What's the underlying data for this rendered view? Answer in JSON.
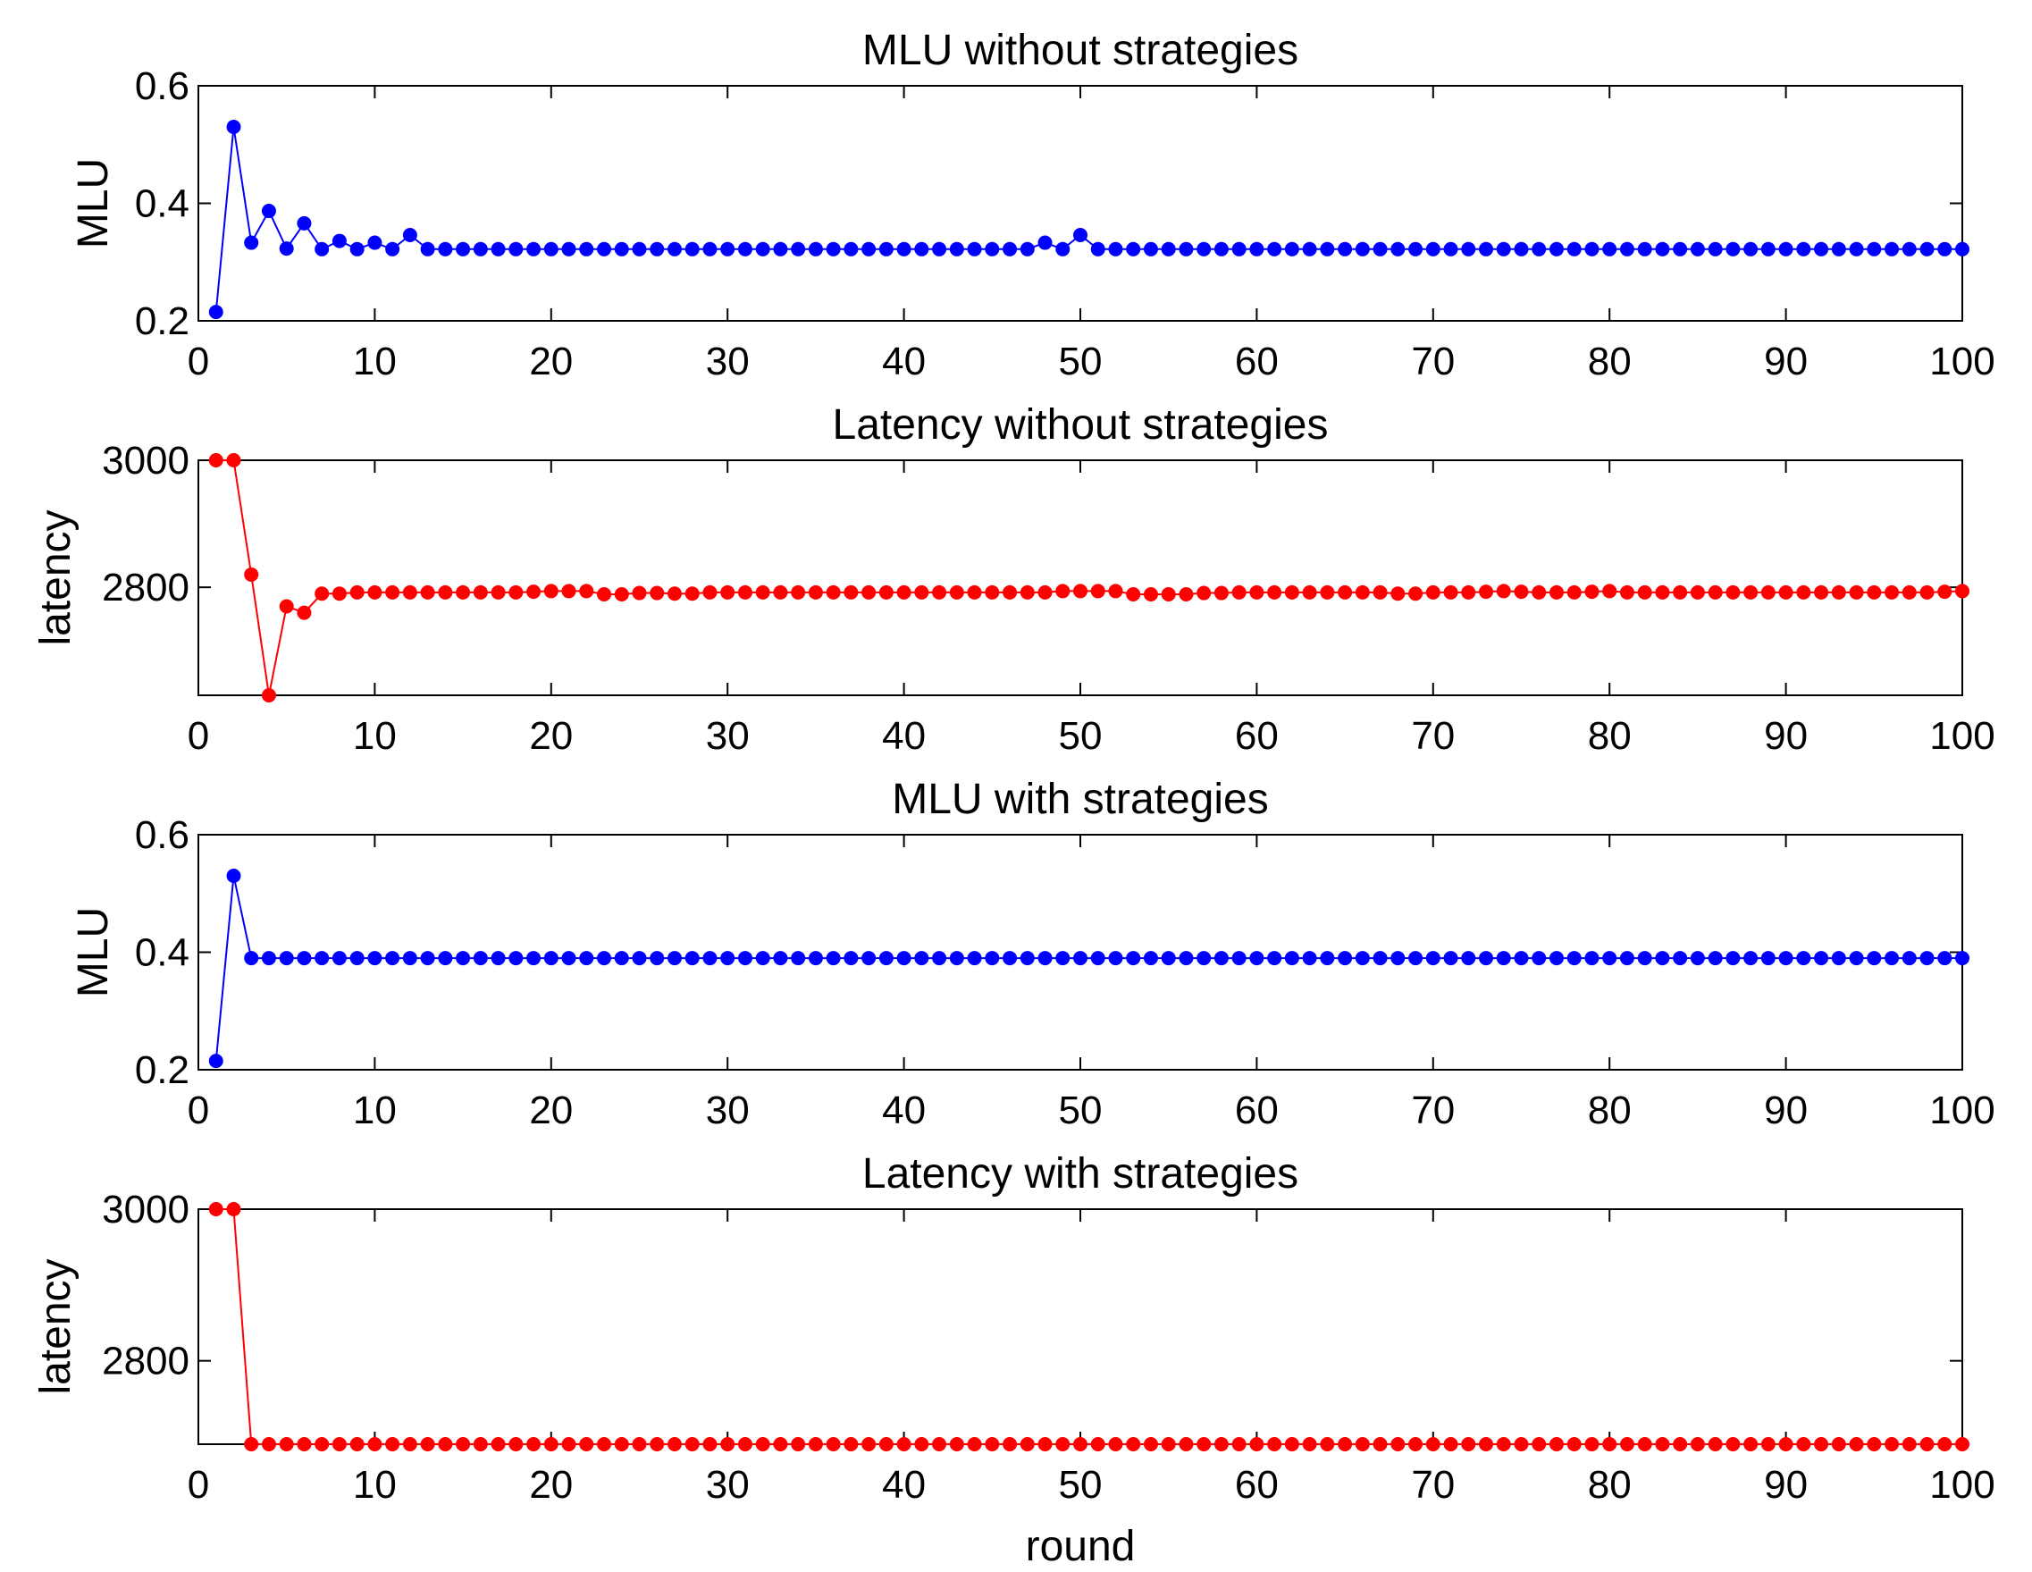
{
  "chart_data": [
    {
      "type": "line",
      "title": "MLU without strategies",
      "xlabel": "",
      "ylabel": "MLU",
      "xlim": [
        0,
        100
      ],
      "ylim": [
        0.2,
        0.6
      ],
      "xticks": [
        "0",
        "10",
        "20",
        "30",
        "40",
        "50",
        "60",
        "70",
        "80",
        "90",
        "100"
      ],
      "yticks": [
        "0.2",
        "0.4",
        "0.6"
      ],
      "color": "#0000ff",
      "grid": false,
      "series": [
        {
          "x": [
            1,
            2,
            3,
            4,
            5,
            6,
            7,
            8,
            9,
            10,
            11,
            12,
            13,
            14,
            15,
            16,
            17,
            18,
            19,
            20,
            21,
            22,
            23,
            24,
            25,
            26,
            27,
            28,
            29,
            30,
            31,
            32,
            33,
            34,
            35,
            36,
            37,
            38,
            39,
            40,
            41,
            42,
            43,
            44,
            45,
            46,
            47,
            48,
            49,
            50,
            51,
            52,
            53,
            54,
            55,
            56,
            57,
            58,
            59,
            60,
            61,
            62,
            63,
            64,
            65,
            66,
            67,
            68,
            69,
            70,
            71,
            72,
            73,
            74,
            75,
            76,
            77,
            78,
            79,
            80,
            81,
            82,
            83,
            84,
            85,
            86,
            87,
            88,
            89,
            90,
            91,
            92,
            93,
            94,
            95,
            96,
            97,
            98,
            99,
            100
          ],
          "values": [
            0.215,
            0.53,
            0.333,
            0.387,
            0.323,
            0.366,
            0.322,
            0.336,
            0.322,
            0.333,
            0.322,
            0.346,
            0.322,
            0.322,
            0.322,
            0.322,
            0.322,
            0.322,
            0.322,
            0.322,
            0.322,
            0.322,
            0.322,
            0.322,
            0.322,
            0.322,
            0.322,
            0.322,
            0.322,
            0.322,
            0.322,
            0.322,
            0.322,
            0.322,
            0.322,
            0.322,
            0.322,
            0.322,
            0.322,
            0.322,
            0.322,
            0.322,
            0.322,
            0.322,
            0.322,
            0.322,
            0.322,
            0.333,
            0.322,
            0.346,
            0.322,
            0.322,
            0.322,
            0.322,
            0.322,
            0.322,
            0.322,
            0.322,
            0.322,
            0.322,
            0.322,
            0.322,
            0.322,
            0.322,
            0.322,
            0.322,
            0.322,
            0.322,
            0.322,
            0.322,
            0.322,
            0.322,
            0.322,
            0.322,
            0.322,
            0.322,
            0.322,
            0.322,
            0.322,
            0.322,
            0.322,
            0.322,
            0.322,
            0.322,
            0.322,
            0.322,
            0.322,
            0.322,
            0.322,
            0.322,
            0.322,
            0.322,
            0.322,
            0.322,
            0.322,
            0.322,
            0.322,
            0.322,
            0.322,
            0.322
          ]
        }
      ]
    },
    {
      "type": "line",
      "title": "Latency without strategies",
      "xlabel": "",
      "ylabel": "latency",
      "xlim": [
        0,
        100
      ],
      "ylim": [
        2630,
        3000
      ],
      "xticks": [
        "0",
        "10",
        "20",
        "30",
        "40",
        "50",
        "60",
        "70",
        "80",
        "90",
        "100"
      ],
      "yticks": [
        "2800",
        "3000"
      ],
      "color": "#ff0000",
      "grid": false,
      "series": [
        {
          "x": [
            1,
            2,
            3,
            4,
            5,
            6,
            7,
            8,
            9,
            10,
            11,
            12,
            13,
            14,
            15,
            16,
            17,
            18,
            19,
            20,
            21,
            22,
            23,
            24,
            25,
            26,
            27,
            28,
            29,
            30,
            31,
            32,
            33,
            34,
            35,
            36,
            37,
            38,
            39,
            40,
            41,
            42,
            43,
            44,
            45,
            46,
            47,
            48,
            49,
            50,
            51,
            52,
            53,
            54,
            55,
            56,
            57,
            58,
            59,
            60,
            61,
            62,
            63,
            64,
            65,
            66,
            67,
            68,
            69,
            70,
            71,
            72,
            73,
            74,
            75,
            76,
            77,
            78,
            79,
            80,
            81,
            82,
            83,
            84,
            85,
            86,
            87,
            88,
            89,
            90,
            91,
            92,
            93,
            94,
            95,
            96,
            97,
            98,
            99,
            100
          ],
          "values": [
            3000,
            3000,
            2820,
            2630,
            2770,
            2760,
            2790,
            2790,
            2792,
            2792,
            2792,
            2792,
            2792,
            2792,
            2792,
            2792,
            2792,
            2792,
            2793,
            2794,
            2794,
            2794,
            2789,
            2789,
            2791,
            2791,
            2790,
            2790,
            2792,
            2792,
            2792,
            2792,
            2792,
            2792,
            2792,
            2792,
            2792,
            2792,
            2792,
            2792,
            2792,
            2792,
            2792,
            2792,
            2792,
            2792,
            2792,
            2792,
            2794,
            2794,
            2794,
            2794,
            2789,
            2789,
            2789,
            2789,
            2791,
            2791,
            2792,
            2792,
            2792,
            2792,
            2792,
            2792,
            2792,
            2792,
            2792,
            2790,
            2790,
            2792,
            2792,
            2792,
            2793,
            2794,
            2793,
            2792,
            2792,
            2792,
            2793,
            2794,
            2792,
            2792,
            2792,
            2792,
            2792,
            2792,
            2792,
            2792,
            2792,
            2792,
            2792,
            2792,
            2792,
            2792,
            2792,
            2792,
            2792,
            2792,
            2793,
            2794
          ]
        }
      ]
    },
    {
      "type": "line",
      "title": "MLU with strategies",
      "xlabel": "",
      "ylabel": "MLU",
      "xlim": [
        0,
        100
      ],
      "ylim": [
        0.2,
        0.6
      ],
      "xticks": [
        "0",
        "10",
        "20",
        "30",
        "40",
        "50",
        "60",
        "70",
        "80",
        "90",
        "100"
      ],
      "yticks": [
        "0.2",
        "0.4",
        "0.6"
      ],
      "color": "#0000ff",
      "grid": false,
      "series": [
        {
          "x": [
            1,
            2,
            3,
            4,
            5,
            6,
            7,
            8,
            9,
            10,
            11,
            12,
            13,
            14,
            15,
            16,
            17,
            18,
            19,
            20,
            21,
            22,
            23,
            24,
            25,
            26,
            27,
            28,
            29,
            30,
            31,
            32,
            33,
            34,
            35,
            36,
            37,
            38,
            39,
            40,
            41,
            42,
            43,
            44,
            45,
            46,
            47,
            48,
            49,
            50,
            51,
            52,
            53,
            54,
            55,
            56,
            57,
            58,
            59,
            60,
            61,
            62,
            63,
            64,
            65,
            66,
            67,
            68,
            69,
            70,
            71,
            72,
            73,
            74,
            75,
            76,
            77,
            78,
            79,
            80,
            81,
            82,
            83,
            84,
            85,
            86,
            87,
            88,
            89,
            90,
            91,
            92,
            93,
            94,
            95,
            96,
            97,
            98,
            99,
            100
          ],
          "values": [
            0.215,
            0.53,
            0.39,
            0.39,
            0.39,
            0.39,
            0.39,
            0.39,
            0.39,
            0.39,
            0.39,
            0.39,
            0.39,
            0.39,
            0.39,
            0.39,
            0.39,
            0.39,
            0.39,
            0.39,
            0.39,
            0.39,
            0.39,
            0.39,
            0.39,
            0.39,
            0.39,
            0.39,
            0.39,
            0.39,
            0.39,
            0.39,
            0.39,
            0.39,
            0.39,
            0.39,
            0.39,
            0.39,
            0.39,
            0.39,
            0.39,
            0.39,
            0.39,
            0.39,
            0.39,
            0.39,
            0.39,
            0.39,
            0.39,
            0.39,
            0.39,
            0.39,
            0.39,
            0.39,
            0.39,
            0.39,
            0.39,
            0.39,
            0.39,
            0.39,
            0.39,
            0.39,
            0.39,
            0.39,
            0.39,
            0.39,
            0.39,
            0.39,
            0.39,
            0.39,
            0.39,
            0.39,
            0.39,
            0.39,
            0.39,
            0.39,
            0.39,
            0.39,
            0.39,
            0.39,
            0.39,
            0.39,
            0.39,
            0.39,
            0.39,
            0.39,
            0.39,
            0.39,
            0.39,
            0.39,
            0.39,
            0.39,
            0.39,
            0.39,
            0.39,
            0.39,
            0.39,
            0.39,
            0.39,
            0.39
          ]
        }
      ]
    },
    {
      "type": "line",
      "title": "Latency with strategies",
      "xlabel": "round",
      "ylabel": "latency",
      "xlim": [
        0,
        100
      ],
      "ylim": [
        2690,
        3000
      ],
      "xticks": [
        "0",
        "10",
        "20",
        "30",
        "40",
        "50",
        "60",
        "70",
        "80",
        "90",
        "100"
      ],
      "yticks": [
        "2800",
        "3000"
      ],
      "color": "#ff0000",
      "grid": false,
      "series": [
        {
          "x": [
            1,
            2,
            3,
            4,
            5,
            6,
            7,
            8,
            9,
            10,
            11,
            12,
            13,
            14,
            15,
            16,
            17,
            18,
            19,
            20,
            21,
            22,
            23,
            24,
            25,
            26,
            27,
            28,
            29,
            30,
            31,
            32,
            33,
            34,
            35,
            36,
            37,
            38,
            39,
            40,
            41,
            42,
            43,
            44,
            45,
            46,
            47,
            48,
            49,
            50,
            51,
            52,
            53,
            54,
            55,
            56,
            57,
            58,
            59,
            60,
            61,
            62,
            63,
            64,
            65,
            66,
            67,
            68,
            69,
            70,
            71,
            72,
            73,
            74,
            75,
            76,
            77,
            78,
            79,
            80,
            81,
            82,
            83,
            84,
            85,
            86,
            87,
            88,
            89,
            90,
            91,
            92,
            93,
            94,
            95,
            96,
            97,
            98,
            99,
            100
          ],
          "values": [
            3000,
            3000,
            2690,
            2690,
            2690,
            2690,
            2690,
            2690,
            2690,
            2690,
            2690,
            2690,
            2690,
            2690,
            2690,
            2690,
            2690,
            2690,
            2690,
            2690,
            2690,
            2690,
            2690,
            2690,
            2690,
            2690,
            2690,
            2690,
            2690,
            2690,
            2690,
            2690,
            2690,
            2690,
            2690,
            2690,
            2690,
            2690,
            2690,
            2690,
            2690,
            2690,
            2690,
            2690,
            2690,
            2690,
            2690,
            2690,
            2690,
            2690,
            2690,
            2690,
            2690,
            2690,
            2690,
            2690,
            2690,
            2690,
            2690,
            2690,
            2690,
            2690,
            2690,
            2690,
            2690,
            2690,
            2690,
            2690,
            2690,
            2690,
            2690,
            2690,
            2690,
            2690,
            2690,
            2690,
            2690,
            2690,
            2690,
            2690,
            2690,
            2690,
            2690,
            2690,
            2690,
            2690,
            2690,
            2690,
            2690,
            2690,
            2690,
            2690,
            2690,
            2690,
            2690,
            2690,
            2690,
            2690,
            2690,
            2690
          ]
        }
      ]
    }
  ]
}
